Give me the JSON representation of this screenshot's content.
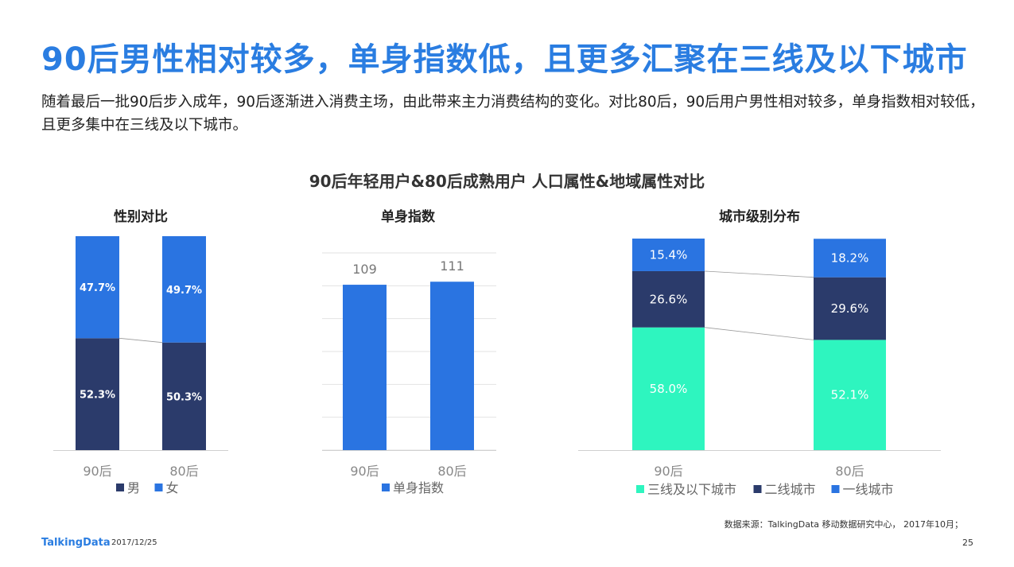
{
  "page": {
    "title": "90后男性相对较多，单身指数低，且更多汇聚在三线及以下城市",
    "subtitle": "随着最后一批90后步入成年，90后逐渐进入消费主场，由此带来主力消费结构的变化。对比80后，90后用户男性相对较多，单身指数相对较低，且更多集中在三线及以下城市。",
    "main_chart_title": "90后年轻用户&80后成熟用户  人口属性&地域属性对比",
    "source": "数据来源：TalkingData 移动数据研究中心， 2017年10月；",
    "logo": "TalkingData",
    "date": "2017/12/25",
    "page_number": "25"
  },
  "colors": {
    "title_blue": "#2a7de1",
    "bar_blue": "#2a74e1",
    "navy": "#2b3b6b",
    "teal": "#2ef5bf",
    "grid": "#e2e2e2"
  },
  "chart_data": [
    {
      "type": "bar",
      "stacked": true,
      "title": "性别对比",
      "categories": [
        "90后",
        "80后"
      ],
      "series": [
        {
          "name": "男",
          "values": [
            52.3,
            50.3
          ],
          "labels": [
            "52.3%",
            "50.3%"
          ],
          "color": "#2b3b6b"
        },
        {
          "name": "女",
          "values": [
            47.7,
            49.7
          ],
          "labels": [
            "47.7%",
            "49.7%"
          ],
          "color": "#2a74e1"
        }
      ],
      "ylim": [
        0,
        100
      ],
      "legend": "bottom",
      "grid": false
    },
    {
      "type": "bar",
      "title": "单身指数",
      "categories": [
        "90后",
        "80后"
      ],
      "series": [
        {
          "name": "单身指数",
          "values": [
            109,
            111
          ],
          "labels": [
            "109",
            "111"
          ],
          "color": "#2a74e1"
        }
      ],
      "ylim": [
        0,
        130
      ],
      "legend": "bottom",
      "grid": true
    },
    {
      "type": "bar",
      "stacked": true,
      "title": "城市级别分布",
      "categories": [
        "90后",
        "80后"
      ],
      "series": [
        {
          "name": "三线及以下城市",
          "values": [
            58.0,
            52.1
          ],
          "labels": [
            "58.0%",
            "52.1%"
          ],
          "color": "#2ef5bf"
        },
        {
          "name": "二线城市",
          "values": [
            26.6,
            29.6
          ],
          "labels": [
            "26.6%",
            "29.6%"
          ],
          "color": "#2b3b6b"
        },
        {
          "name": "一线城市",
          "values": [
            15.4,
            18.2
          ],
          "labels": [
            "15.4%",
            "18.2%"
          ],
          "color": "#2a74e1"
        }
      ],
      "ylim": [
        0,
        100
      ],
      "legend": "bottom",
      "grid": false
    }
  ]
}
